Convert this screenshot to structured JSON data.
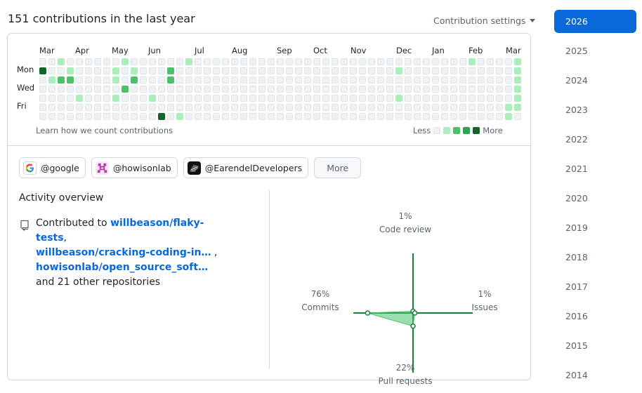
{
  "header": {
    "title": "151 contributions in the last year",
    "settings_label": "Contribution settings"
  },
  "graph": {
    "months": [
      "Mar",
      "Apr",
      "May",
      "Jun",
      "Jul",
      "Aug",
      "Sep",
      "Oct",
      "Nov",
      "Dec",
      "Jan",
      "Feb",
      "Mar"
    ],
    "day_labels": [
      "Mon",
      "Wed",
      "Fri"
    ],
    "learn_link": "Learn how we count contributions",
    "legend_less": "Less",
    "legend_more": "More",
    "colors": [
      "#eff2f5",
      "#aceebb",
      "#4ac26b",
      "#2da44e",
      "#116329"
    ],
    "levels": [
      [
        0,
        4,
        0,
        0,
        0,
        0,
        0
      ],
      [
        0,
        0,
        1,
        0,
        0,
        0,
        0
      ],
      [
        1,
        0,
        2,
        0,
        0,
        0,
        0
      ],
      [
        0,
        1,
        2,
        0,
        0,
        0,
        0
      ],
      [
        0,
        0,
        0,
        0,
        1,
        0,
        0
      ],
      [
        0,
        0,
        0,
        0,
        0,
        0,
        0
      ],
      [
        0,
        0,
        0,
        0,
        0,
        0,
        0
      ],
      [
        0,
        0,
        0,
        0,
        0,
        0,
        0
      ],
      [
        0,
        1,
        1,
        0,
        1,
        0,
        0
      ],
      [
        1,
        0,
        0,
        2,
        0,
        0,
        0
      ],
      [
        0,
        1,
        2,
        0,
        0,
        0,
        0
      ],
      [
        0,
        0,
        0,
        0,
        0,
        0,
        0
      ],
      [
        0,
        0,
        0,
        0,
        1,
        0,
        0
      ],
      [
        0,
        0,
        0,
        0,
        0,
        0,
        4
      ],
      [
        0,
        2,
        2,
        0,
        0,
        0,
        0
      ],
      [
        0,
        0,
        0,
        0,
        0,
        0,
        1
      ],
      [
        1,
        0,
        0,
        0,
        0,
        0,
        0
      ],
      [
        0,
        0,
        0,
        0,
        0,
        0,
        0
      ],
      [
        0,
        0,
        0,
        0,
        0,
        0,
        0
      ],
      [
        0,
        0,
        0,
        0,
        0,
        0,
        0
      ],
      [
        0,
        0,
        0,
        0,
        0,
        0,
        0
      ],
      [
        0,
        0,
        0,
        0,
        0,
        0,
        0
      ],
      [
        0,
        0,
        0,
        0,
        0,
        0,
        0
      ],
      [
        0,
        0,
        0,
        0,
        0,
        0,
        0
      ],
      [
        0,
        0,
        0,
        0,
        0,
        0,
        0
      ],
      [
        0,
        0,
        0,
        0,
        0,
        0,
        0
      ],
      [
        0,
        0,
        0,
        0,
        0,
        0,
        0
      ],
      [
        0,
        0,
        0,
        0,
        0,
        0,
        0
      ],
      [
        0,
        0,
        0,
        0,
        0,
        0,
        0
      ],
      [
        0,
        0,
        0,
        0,
        0,
        0,
        0
      ],
      [
        0,
        0,
        0,
        0,
        0,
        0,
        0
      ],
      [
        0,
        0,
        0,
        0,
        0,
        0,
        0
      ],
      [
        0,
        0,
        0,
        0,
        0,
        0,
        0
      ],
      [
        0,
        0,
        0,
        0,
        0,
        0,
        0
      ],
      [
        0,
        0,
        0,
        0,
        0,
        0,
        0
      ],
      [
        0,
        0,
        0,
        0,
        0,
        0,
        0
      ],
      [
        0,
        0,
        0,
        0,
        0,
        0,
        0
      ],
      [
        0,
        0,
        0,
        0,
        0,
        0,
        0
      ],
      [
        0,
        0,
        0,
        0,
        0,
        0,
        0
      ],
      [
        0,
        1,
        0,
        0,
        1,
        0,
        0
      ],
      [
        0,
        0,
        0,
        0,
        0,
        0,
        0
      ],
      [
        0,
        0,
        0,
        0,
        0,
        0,
        0
      ],
      [
        0,
        0,
        0,
        0,
        0,
        0,
        0
      ],
      [
        0,
        0,
        0,
        0,
        0,
        0,
        0
      ],
      [
        0,
        0,
        0,
        0,
        0,
        0,
        0
      ],
      [
        0,
        0,
        0,
        0,
        0,
        0,
        0
      ],
      [
        0,
        0,
        0,
        0,
        0,
        0,
        0
      ],
      [
        1,
        0,
        0,
        0,
        0,
        0,
        0
      ],
      [
        0,
        0,
        0,
        0,
        0,
        0,
        0
      ],
      [
        0,
        0,
        0,
        0,
        0,
        0,
        0
      ],
      [
        0,
        0,
        0,
        0,
        0,
        0,
        0
      ],
      [
        0,
        0,
        0,
        0,
        0,
        1,
        1
      ],
      [
        1,
        1,
        1,
        1,
        1,
        1,
        0
      ]
    ]
  },
  "orgs": [
    {
      "label": "@google"
    },
    {
      "label": "@howisonlab"
    },
    {
      "label": "@EarendelDevelopers"
    }
  ],
  "more_label": "More",
  "activity": {
    "title": "Activity overview",
    "prefix": "Contributed to ",
    "repos": [
      "willbeason/flaky-tests",
      "willbeason/cracking-coding-in…",
      "howisonlab/open_source_soft…"
    ],
    "sep1": ",",
    "sep2": " ,",
    "suffix": "and 21 other repositories"
  },
  "radar": {
    "code_review": {
      "pct": "1%",
      "label": "Code review",
      "value": 1
    },
    "issues": {
      "pct": "1%",
      "label": "Issues",
      "value": 1
    },
    "pull_requests": {
      "pct": "22%",
      "label": "Pull requests",
      "value": 22
    },
    "commits": {
      "pct": "76%",
      "label": "Commits",
      "value": 76
    }
  },
  "years": [
    "2026",
    "2025",
    "2024",
    "2023",
    "2022",
    "2021",
    "2020",
    "2019",
    "2018",
    "2017",
    "2016",
    "2015",
    "2014"
  ],
  "active_year": "2026"
}
